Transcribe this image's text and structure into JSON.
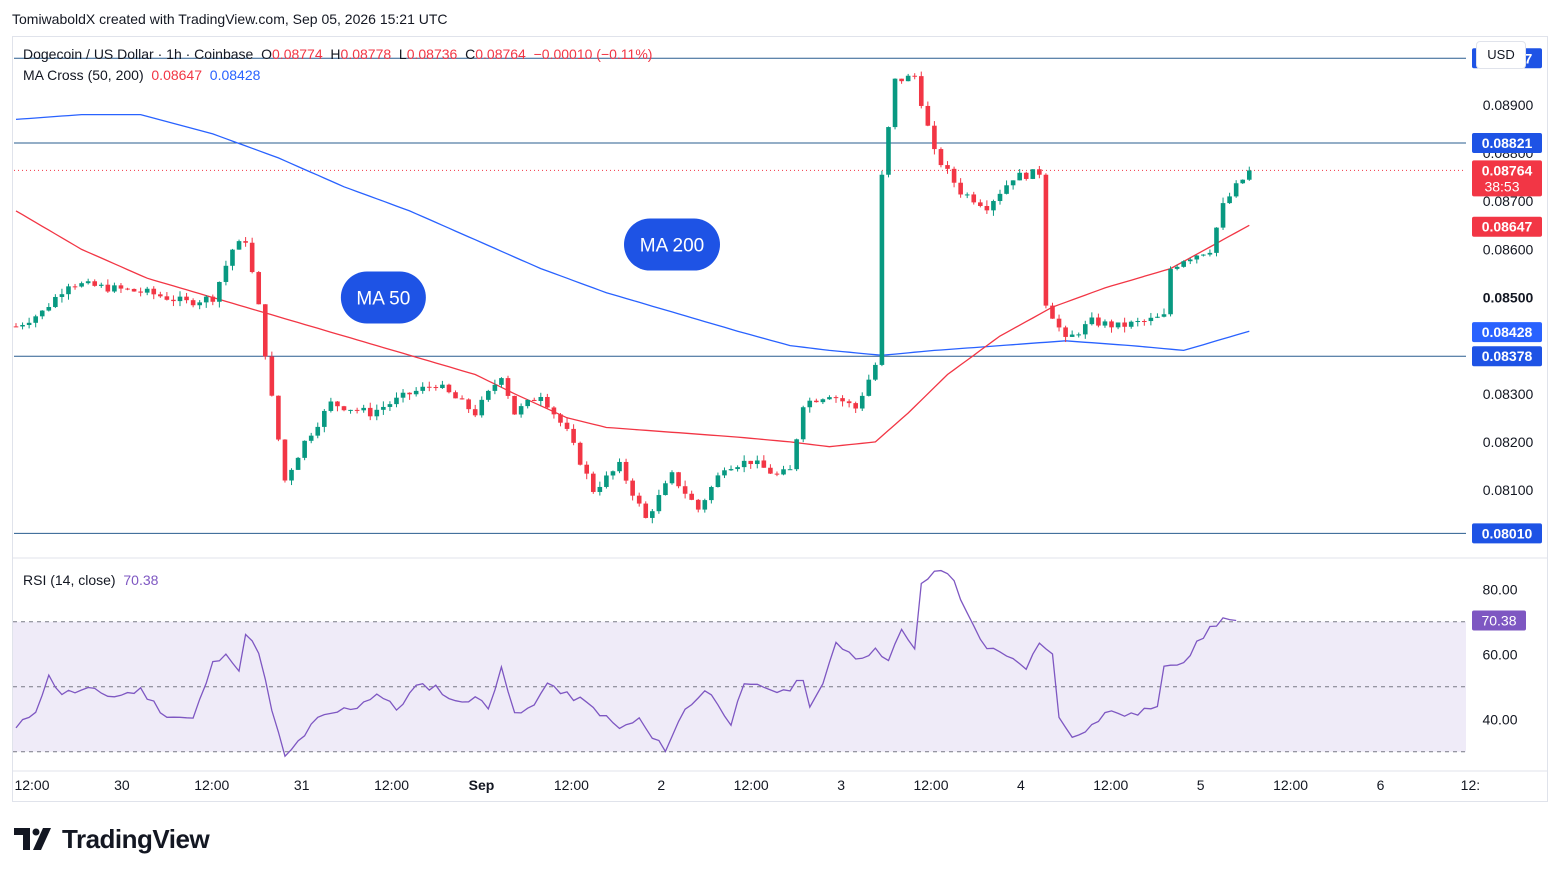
{
  "caption": "TomiwaboldX created with TradingView.com, Sep 05, 2026 15:21 UTC",
  "legend": {
    "symbol": "Dogecoin / US Dollar · 1h · Coinbase",
    "open_label": "O",
    "open": "0.08774",
    "high_label": "H",
    "high": "0.08778",
    "low_label": "L",
    "low": "0.08736",
    "close_label": "C",
    "close": "0.08764",
    "change": "−0.00010 (−0.11%)",
    "ma_label": "MA Cross (50, 200)",
    "ma50_value": "0.08647",
    "ma200_value": "0.08428",
    "rsi_label": "RSI (14, close)",
    "rsi_value": "70.38"
  },
  "currency": "USD",
  "brand": "TradingView",
  "colors": {
    "up": "#089981",
    "down": "#f23645",
    "ma50": "#f23645",
    "ma200": "#2962ff",
    "rsi": "#7e57c2",
    "level_line": "#2a5d8f"
  },
  "chart_data": [
    {
      "type": "candlestick",
      "x_ticks": [
        "12:00",
        "30",
        "12:00",
        "31",
        "12:00",
        "Sep",
        "12:00",
        "2",
        "12:00",
        "3",
        "12:00",
        "4",
        "12:00",
        "5",
        "12:00",
        "6",
        "12:"
      ],
      "y_ticks": [
        "0.08900",
        "0.08800",
        "0.08700",
        "0.08600",
        "0.08500",
        "0.08300",
        "0.08200",
        "0.08100"
      ],
      "ylim": [
        0.07965,
        0.09035
      ],
      "horizontal_levels": [
        {
          "value": 0.08997,
          "label": "0.08997"
        },
        {
          "value": 0.08821,
          "label": "0.08821"
        },
        {
          "value": 0.08378,
          "label": "0.08378"
        },
        {
          "value": 0.0801,
          "label": "0.08010"
        }
      ],
      "price_tags": [
        {
          "value": 0.08764,
          "label": "0.08764",
          "countdown": "38:53",
          "color": "#f23645"
        },
        {
          "value": 0.08647,
          "label": "0.08647",
          "color": "#f23645"
        },
        {
          "value": 0.08428,
          "label": "0.08428",
          "color": "#2962ff"
        }
      ],
      "annotations": [
        {
          "text": "MA 50",
          "x_index": 56,
          "value": 0.085
        },
        {
          "text": "MA 200",
          "x_index": 100,
          "value": 0.0861
        }
      ],
      "price_anchors": [
        [
          0,
          0.0844
        ],
        [
          4,
          0.0847
        ],
        [
          8,
          0.0853
        ],
        [
          14,
          0.0852
        ],
        [
          20,
          0.0851
        ],
        [
          26,
          0.0849
        ],
        [
          30,
          0.085
        ],
        [
          33,
          0.086
        ],
        [
          35,
          0.0862
        ],
        [
          37,
          0.0848
        ],
        [
          39,
          0.0829
        ],
        [
          41,
          0.0812
        ],
        [
          44,
          0.082
        ],
        [
          48,
          0.0828
        ],
        [
          54,
          0.0826
        ],
        [
          60,
          0.083
        ],
        [
          64,
          0.0832
        ],
        [
          70,
          0.0826
        ],
        [
          74,
          0.0834
        ],
        [
          76,
          0.0826
        ],
        [
          80,
          0.083
        ],
        [
          84,
          0.0822
        ],
        [
          88,
          0.081
        ],
        [
          92,
          0.0815
        ],
        [
          96,
          0.0804
        ],
        [
          100,
          0.0813
        ],
        [
          104,
          0.0806
        ],
        [
          108,
          0.0815
        ],
        [
          112,
          0.0816
        ],
        [
          116,
          0.0813
        ],
        [
          118,
          0.0814
        ],
        [
          120,
          0.0828
        ],
        [
          124,
          0.083
        ],
        [
          128,
          0.0827
        ],
        [
          131,
          0.0836
        ],
        [
          132,
          0.0875
        ],
        [
          134,
          0.0895
        ],
        [
          137,
          0.0896
        ],
        [
          140,
          0.088
        ],
        [
          144,
          0.0872
        ],
        [
          148,
          0.0869
        ],
        [
          152,
          0.0875
        ],
        [
          156,
          0.0876
        ],
        [
          157,
          0.0849
        ],
        [
          160,
          0.0841
        ],
        [
          164,
          0.0845
        ],
        [
          168,
          0.0844
        ],
        [
          172,
          0.0845
        ],
        [
          175,
          0.0846
        ],
        [
          176,
          0.0856
        ],
        [
          178,
          0.0858
        ],
        [
          182,
          0.086
        ],
        [
          184,
          0.0869
        ],
        [
          186,
          0.0873
        ],
        [
          188,
          0.0876
        ]
      ],
      "ma50_anchors": [
        [
          0,
          0.0868
        ],
        [
          10,
          0.086
        ],
        [
          20,
          0.0854
        ],
        [
          30,
          0.085
        ],
        [
          40,
          0.0846
        ],
        [
          50,
          0.0842
        ],
        [
          60,
          0.0838
        ],
        [
          70,
          0.0834
        ],
        [
          76,
          0.083
        ],
        [
          84,
          0.0825
        ],
        [
          90,
          0.0823
        ],
        [
          100,
          0.0822
        ],
        [
          110,
          0.0821
        ],
        [
          118,
          0.082
        ],
        [
          124,
          0.0819
        ],
        [
          131,
          0.082
        ],
        [
          136,
          0.0826
        ],
        [
          142,
          0.0834
        ],
        [
          150,
          0.0842
        ],
        [
          158,
          0.0848
        ],
        [
          166,
          0.0852
        ],
        [
          176,
          0.0856
        ],
        [
          188,
          0.0865
        ]
      ],
      "ma200_anchors": [
        [
          0,
          0.0887
        ],
        [
          10,
          0.0888
        ],
        [
          19,
          0.0888
        ],
        [
          30,
          0.0884
        ],
        [
          40,
          0.0879
        ],
        [
          50,
          0.0873
        ],
        [
          60,
          0.0868
        ],
        [
          70,
          0.0862
        ],
        [
          80,
          0.0856
        ],
        [
          90,
          0.0851
        ],
        [
          100,
          0.0847
        ],
        [
          110,
          0.0843
        ],
        [
          118,
          0.084
        ],
        [
          124,
          0.0839
        ],
        [
          132,
          0.0838
        ],
        [
          140,
          0.0839
        ],
        [
          150,
          0.084
        ],
        [
          160,
          0.0841
        ],
        [
          170,
          0.084
        ],
        [
          178,
          0.0839
        ],
        [
          188,
          0.0843
        ]
      ],
      "candle_count": 189
    },
    {
      "type": "line",
      "name": "RSI (14, close)",
      "y_ticks": [
        "80.00",
        "60.00",
        "40.00"
      ],
      "ylim": [
        25,
        89
      ],
      "band": [
        30,
        70
      ],
      "midline": 50,
      "current": {
        "value": 70.38,
        "label": "70.38"
      },
      "rsi_anchors": [
        [
          0,
          37
        ],
        [
          3,
          43
        ],
        [
          5,
          53
        ],
        [
          7,
          48
        ],
        [
          11,
          49
        ],
        [
          15,
          47
        ],
        [
          19,
          49
        ],
        [
          23,
          41
        ],
        [
          27,
          40
        ],
        [
          30,
          57
        ],
        [
          32,
          61
        ],
        [
          34,
          54
        ],
        [
          35,
          67
        ],
        [
          37,
          60
        ],
        [
          39,
          43
        ],
        [
          41,
          28
        ],
        [
          43,
          33
        ],
        [
          46,
          40
        ],
        [
          50,
          43
        ],
        [
          52,
          44
        ],
        [
          55,
          48
        ],
        [
          58,
          43
        ],
        [
          61,
          50
        ],
        [
          64,
          50
        ],
        [
          67,
          45
        ],
        [
          70,
          47
        ],
        [
          72,
          43
        ],
        [
          74,
          57
        ],
        [
          76,
          41
        ],
        [
          79,
          44
        ],
        [
          81,
          52
        ],
        [
          83,
          48
        ],
        [
          86,
          46
        ],
        [
          89,
          42
        ],
        [
          92,
          37
        ],
        [
          95,
          40
        ],
        [
          97,
          34
        ],
        [
          99,
          31
        ],
        [
          102,
          43
        ],
        [
          105,
          49
        ],
        [
          107,
          45
        ],
        [
          109,
          39
        ],
        [
          111,
          50
        ],
        [
          114,
          50
        ],
        [
          117,
          48
        ],
        [
          120,
          53
        ],
        [
          121,
          44
        ],
        [
          123,
          50
        ],
        [
          125,
          64
        ],
        [
          128,
          59
        ],
        [
          131,
          61
        ],
        [
          133,
          59
        ],
        [
          135,
          67
        ],
        [
          137,
          61
        ],
        [
          138,
          82
        ],
        [
          141,
          86
        ],
        [
          143,
          83
        ],
        [
          145,
          72
        ],
        [
          148,
          62
        ],
        [
          152,
          58
        ],
        [
          154,
          56
        ],
        [
          156,
          63
        ],
        [
          158,
          61
        ],
        [
          159,
          40
        ],
        [
          161,
          35
        ],
        [
          164,
          38
        ],
        [
          166,
          42
        ],
        [
          168,
          42
        ],
        [
          170,
          41
        ],
        [
          172,
          43
        ],
        [
          174,
          43
        ],
        [
          175,
          57
        ],
        [
          178,
          58
        ],
        [
          180,
          63
        ],
        [
          182,
          68
        ],
        [
          184,
          71
        ],
        [
          186,
          70
        ]
      ]
    }
  ]
}
